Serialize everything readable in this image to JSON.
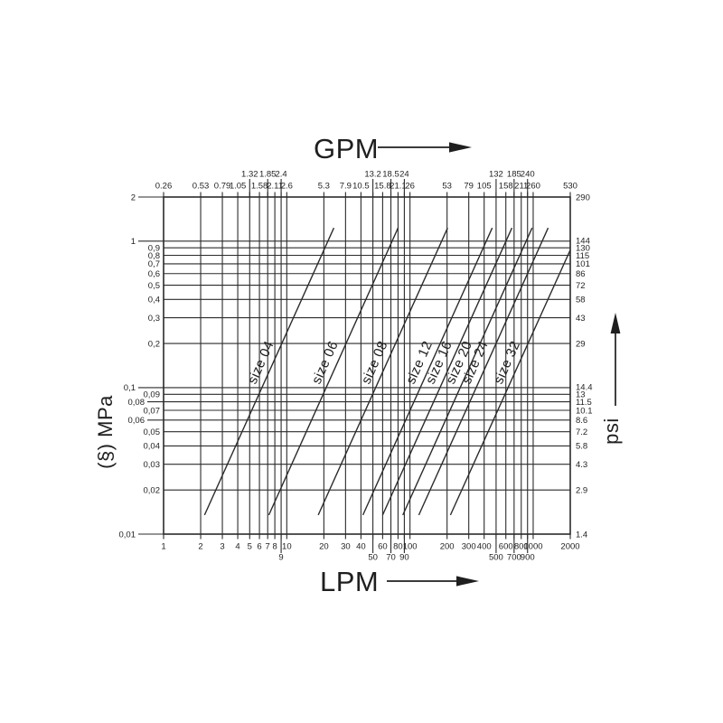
{
  "page": {
    "background": "#ffffff",
    "ink": "#1f1f1f",
    "line": "#2b2b2b"
  },
  "chart_data": {
    "type": "line",
    "scale": "log-log",
    "grid": true,
    "title": "",
    "axes": {
      "top": {
        "label": "GPM",
        "arrow": "right"
      },
      "bottom": {
        "label": "LPM",
        "arrow": "right"
      },
      "left": {
        "label": "(§) MPa"
      },
      "right": {
        "label": "psi",
        "arrow": "up"
      }
    },
    "x_range_lpm": [
      1,
      2000
    ],
    "y_range_mpa": [
      0.01,
      2
    ],
    "x_ticks": [
      {
        "lpm": 1,
        "lpm_label": "1",
        "gpm_label": "0.26",
        "gpm_stagger": false,
        "lpm_stagger": false
      },
      {
        "lpm": 2,
        "lpm_label": "2",
        "gpm_label": "0.53",
        "gpm_stagger": false,
        "lpm_stagger": false
      },
      {
        "lpm": 3,
        "lpm_label": "3",
        "gpm_label": "0.79",
        "gpm_stagger": false,
        "lpm_stagger": false
      },
      {
        "lpm": 4,
        "lpm_label": "4",
        "gpm_label": "1.05",
        "gpm_stagger": false,
        "lpm_stagger": false
      },
      {
        "lpm": 5,
        "lpm_label": "5",
        "gpm_label": "1.32",
        "gpm_stagger": true,
        "lpm_stagger": false
      },
      {
        "lpm": 6,
        "lpm_label": "6",
        "gpm_label": "1.58",
        "gpm_stagger": false,
        "lpm_stagger": false
      },
      {
        "lpm": 7,
        "lpm_label": "7",
        "gpm_label": "1.85",
        "gpm_stagger": true,
        "lpm_stagger": false
      },
      {
        "lpm": 8,
        "lpm_label": "8",
        "gpm_label": "2.11",
        "gpm_stagger": false,
        "lpm_stagger": false
      },
      {
        "lpm": 9,
        "lpm_label": "9",
        "gpm_label": "2.4",
        "gpm_stagger": true,
        "lpm_stagger": true
      },
      {
        "lpm": 10,
        "lpm_label": "10",
        "gpm_label": "2.6",
        "gpm_stagger": false,
        "lpm_stagger": false
      },
      {
        "lpm": 20,
        "lpm_label": "20",
        "gpm_label": "5.3",
        "gpm_stagger": false,
        "lpm_stagger": false
      },
      {
        "lpm": 30,
        "lpm_label": "30",
        "gpm_label": "7.9",
        "gpm_stagger": false,
        "lpm_stagger": false
      },
      {
        "lpm": 40,
        "lpm_label": "40",
        "gpm_label": "10.5",
        "gpm_stagger": false,
        "lpm_stagger": false
      },
      {
        "lpm": 50,
        "lpm_label": "50",
        "gpm_label": "13.2",
        "gpm_stagger": true,
        "lpm_stagger": true
      },
      {
        "lpm": 60,
        "lpm_label": "60",
        "gpm_label": "15.8",
        "gpm_stagger": false,
        "lpm_stagger": false
      },
      {
        "lpm": 70,
        "lpm_label": "70",
        "gpm_label": "18.5",
        "gpm_stagger": true,
        "lpm_stagger": true
      },
      {
        "lpm": 80,
        "lpm_label": "80",
        "gpm_label": "21.1",
        "gpm_stagger": false,
        "lpm_stagger": false
      },
      {
        "lpm": 90,
        "lpm_label": "90",
        "gpm_label": "24",
        "gpm_stagger": true,
        "lpm_stagger": true
      },
      {
        "lpm": 100,
        "lpm_label": "100",
        "gpm_label": "26",
        "gpm_stagger": false,
        "lpm_stagger": false
      },
      {
        "lpm": 200,
        "lpm_label": "200",
        "gpm_label": "53",
        "gpm_stagger": false,
        "lpm_stagger": false
      },
      {
        "lpm": 300,
        "lpm_label": "300",
        "gpm_label": "79",
        "gpm_stagger": false,
        "lpm_stagger": false
      },
      {
        "lpm": 400,
        "lpm_label": "400",
        "gpm_label": "105",
        "gpm_stagger": false,
        "lpm_stagger": false
      },
      {
        "lpm": 500,
        "lpm_label": "500",
        "gpm_label": "132",
        "gpm_stagger": true,
        "lpm_stagger": true
      },
      {
        "lpm": 600,
        "lpm_label": "600",
        "gpm_label": "158",
        "gpm_stagger": false,
        "lpm_stagger": false
      },
      {
        "lpm": 700,
        "lpm_label": "700",
        "gpm_label": "185",
        "gpm_stagger": true,
        "lpm_stagger": true
      },
      {
        "lpm": 800,
        "lpm_label": "800",
        "gpm_label": "211",
        "gpm_stagger": false,
        "lpm_stagger": false
      },
      {
        "lpm": 900,
        "lpm_label": "900",
        "gpm_label": "240",
        "gpm_stagger": true,
        "lpm_stagger": true
      },
      {
        "lpm": 1000,
        "lpm_label": "1000",
        "gpm_label": "260",
        "gpm_stagger": false,
        "lpm_stagger": false
      },
      {
        "lpm": 2000,
        "lpm_label": "2000",
        "gpm_label": "530",
        "gpm_stagger": false,
        "lpm_stagger": false
      }
    ],
    "y_ticks": [
      {
        "mpa": 2,
        "mpa_label": "2",
        "psi_label": "290",
        "leader": "long"
      },
      {
        "mpa": 1,
        "mpa_label": "1",
        "psi_label": "144",
        "leader": "long"
      },
      {
        "mpa": 0.9,
        "mpa_label": "0,9",
        "psi_label": "130",
        "leader": null
      },
      {
        "mpa": 0.8,
        "mpa_label": "0,8",
        "psi_label": "115",
        "leader": null
      },
      {
        "mpa": 0.7,
        "mpa_label": "0,7",
        "psi_label": "101",
        "leader": null
      },
      {
        "mpa": 0.6,
        "mpa_label": "0,6",
        "psi_label": "86",
        "leader": null
      },
      {
        "mpa": 0.5,
        "mpa_label": "0,5",
        "psi_label": "72",
        "leader": null
      },
      {
        "mpa": 0.4,
        "mpa_label": "0,4",
        "psi_label": "58",
        "leader": null
      },
      {
        "mpa": 0.3,
        "mpa_label": "0,3",
        "psi_label": "43",
        "leader": null
      },
      {
        "mpa": 0.2,
        "mpa_label": "0,2",
        "psi_label": "29",
        "leader": null
      },
      {
        "mpa": 0.1,
        "mpa_label": "0,1",
        "psi_label": "14.4",
        "leader": "long"
      },
      {
        "mpa": 0.09,
        "mpa_label": "0,09",
        "psi_label": "13",
        "leader": null
      },
      {
        "mpa": 0.08,
        "mpa_label": "0,08",
        "psi_label": "11.5",
        "leader": "short"
      },
      {
        "mpa": 0.07,
        "mpa_label": "0,07",
        "psi_label": "10.1",
        "leader": null
      },
      {
        "mpa": 0.06,
        "mpa_label": "0,06",
        "psi_label": "8.6",
        "leader": "short"
      },
      {
        "mpa": 0.05,
        "mpa_label": "0,05",
        "psi_label": "7.2",
        "leader": null
      },
      {
        "mpa": 0.04,
        "mpa_label": "0,04",
        "psi_label": "5.8",
        "leader": null
      },
      {
        "mpa": 0.03,
        "mpa_label": "0,03",
        "psi_label": "4.3",
        "leader": null
      },
      {
        "mpa": 0.02,
        "mpa_label": "0,02",
        "psi_label": "2.9",
        "leader": null
      },
      {
        "mpa": 0.01,
        "mpa_label": "0,01",
        "psi_label": "1.4",
        "leader": "long"
      }
    ],
    "series": [
      {
        "name": "size 04",
        "from": [
          2.15,
          0.0135
        ],
        "to": [
          24.1,
          1.23
        ]
      },
      {
        "name": "size 06",
        "from": [
          7.15,
          0.0135
        ],
        "to": [
          80,
          1.23
        ]
      },
      {
        "name": "size 08",
        "from": [
          18,
          0.0135
        ],
        "to": [
          202,
          1.23
        ]
      },
      {
        "name": "size 12",
        "from": [
          41.5,
          0.0135
        ],
        "to": [
          465,
          1.23
        ]
      },
      {
        "name": "size 16",
        "from": [
          60,
          0.0135
        ],
        "to": [
          672,
          1.23
        ]
      },
      {
        "name": "size 20",
        "from": [
          87.5,
          0.0135
        ],
        "to": [
          980,
          1.23
        ]
      },
      {
        "name": "size 24",
        "from": [
          118,
          0.0135
        ],
        "to": [
          1322,
          1.23
        ]
      },
      {
        "name": "size 32",
        "from": [
          213,
          0.0135
        ],
        "to": [
          2000,
          0.87
        ]
      }
    ]
  }
}
